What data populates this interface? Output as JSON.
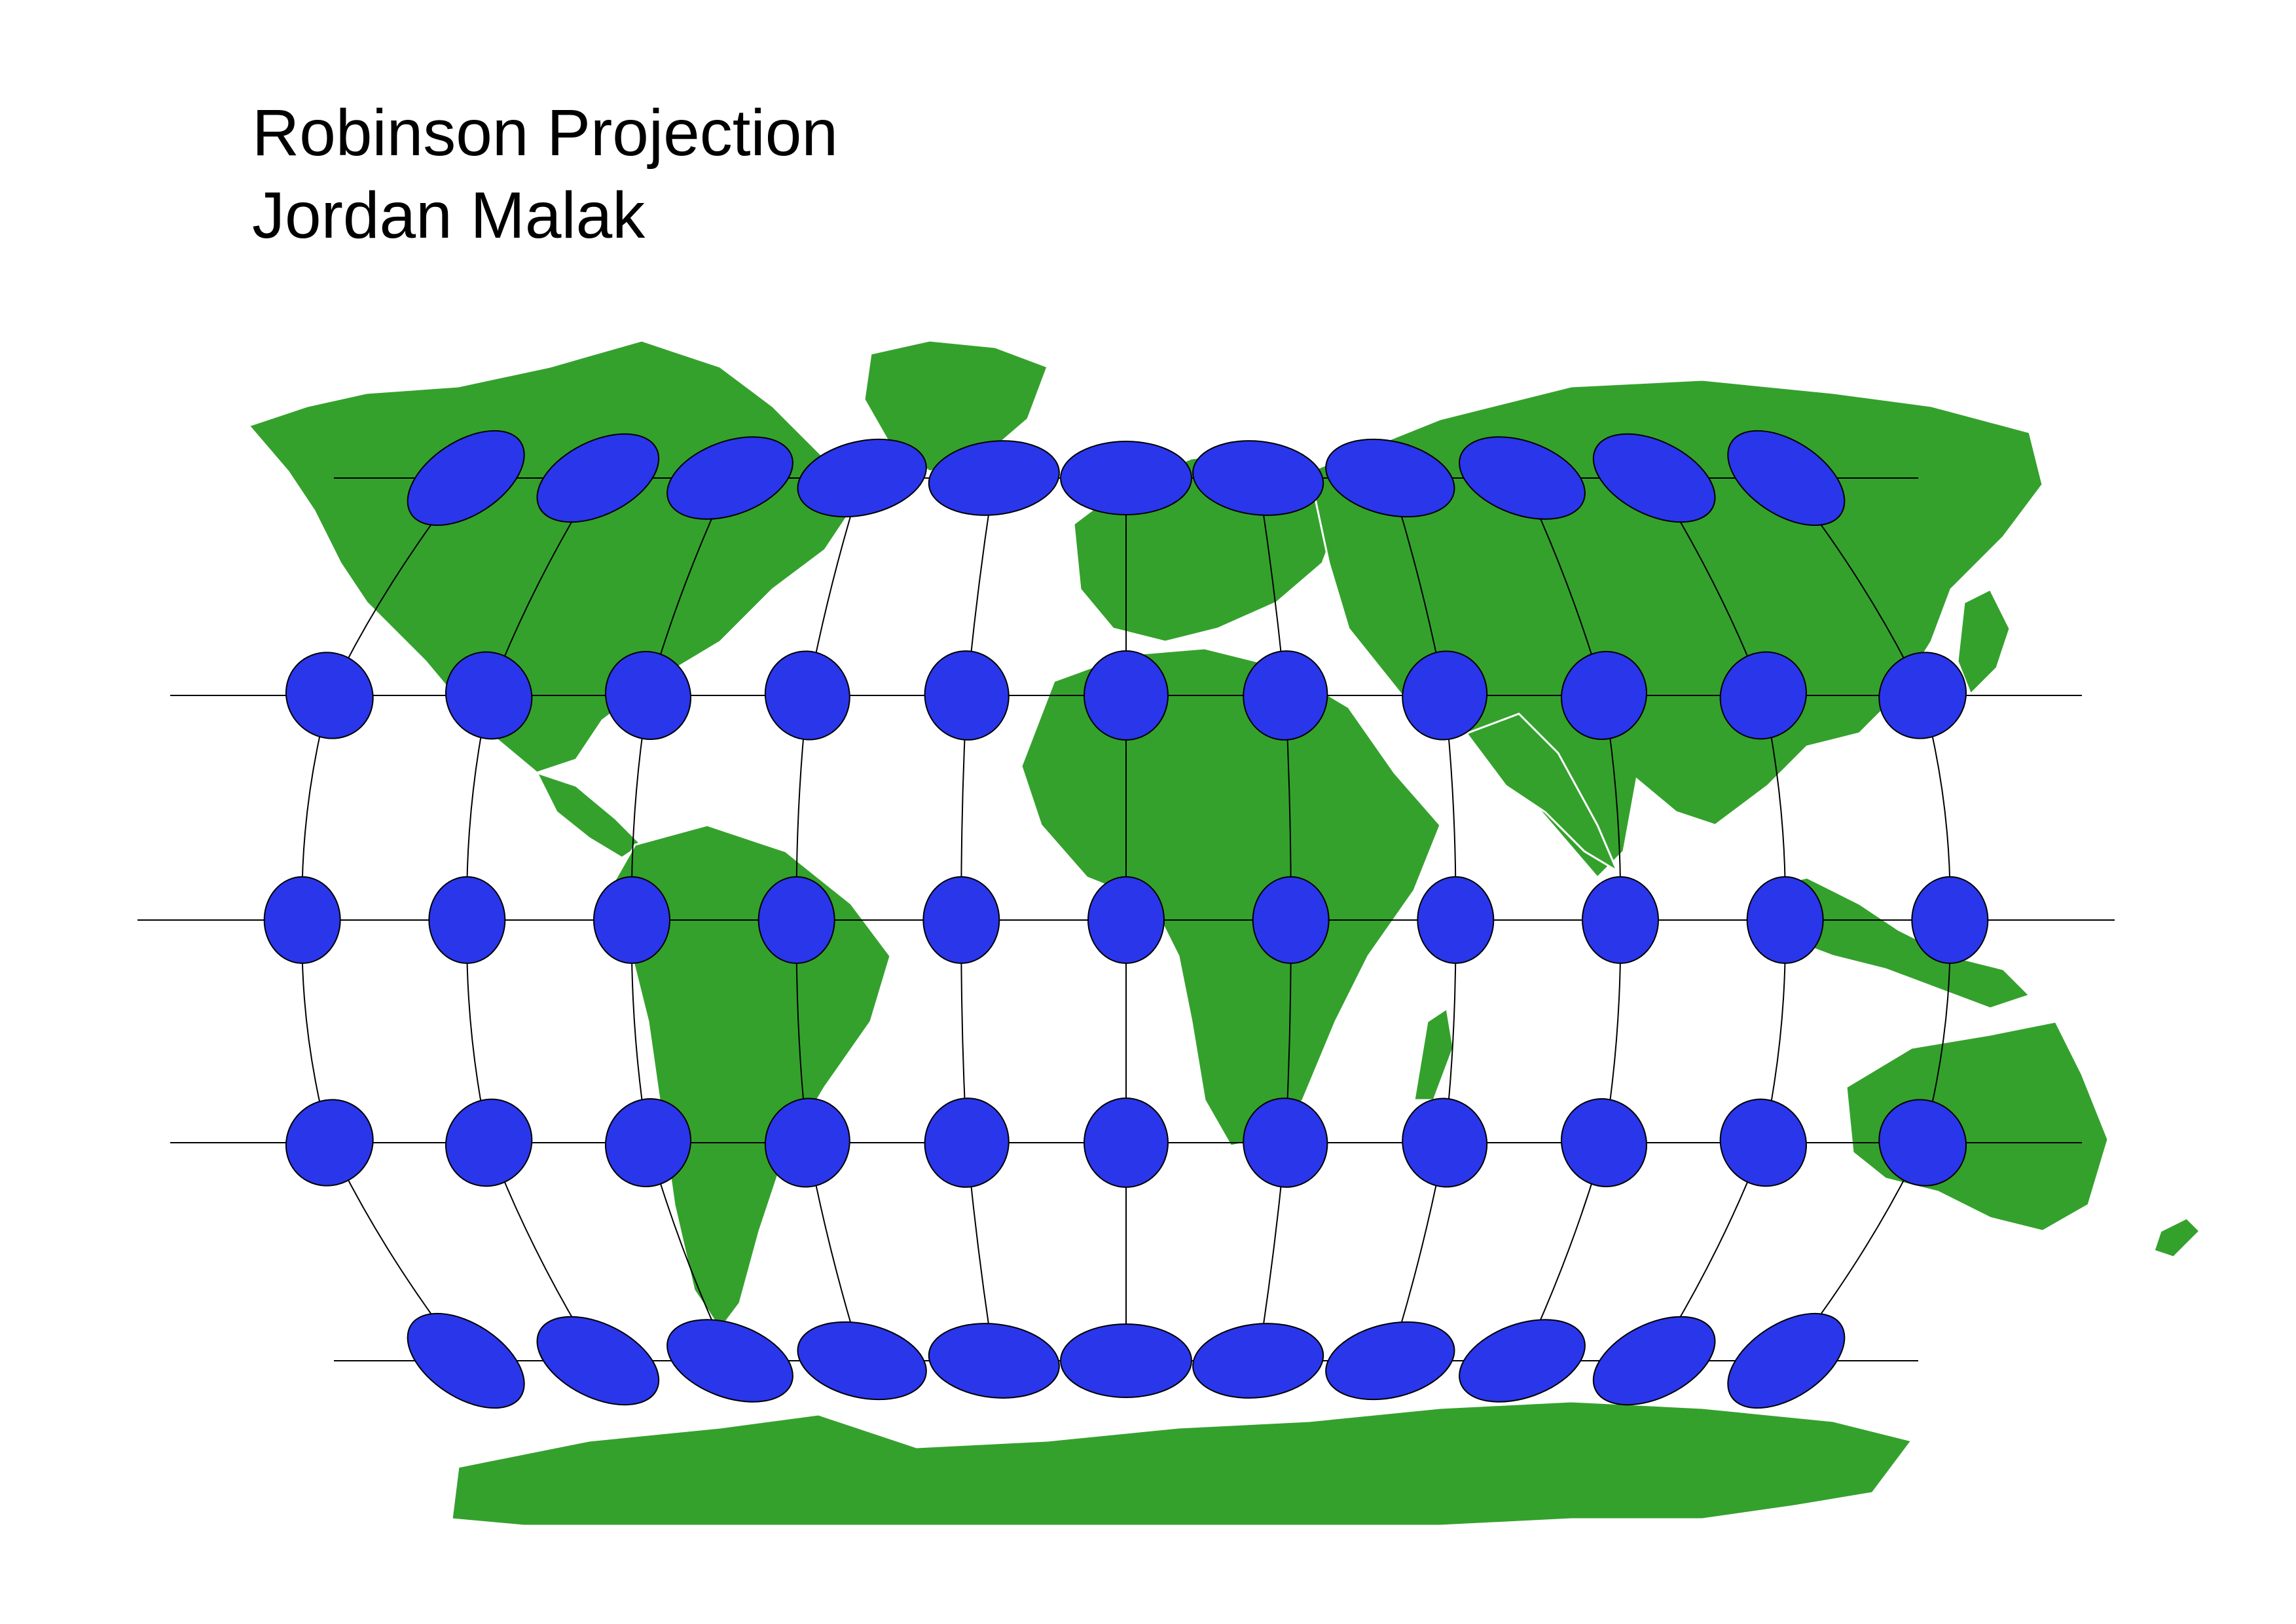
{
  "title": "Robinson Projection",
  "author": "Jordan Malak",
  "colors": {
    "land": "#34a12d",
    "borders": "#ffffff",
    "indicatrix": "#2a36ea",
    "indicatrix_outline": "#000000",
    "graticule": "#000000",
    "background": "#ffffff"
  },
  "graticule": {
    "projection": "Robinson",
    "longitudes_deg": [
      -150,
      -120,
      -90,
      -60,
      -30,
      0,
      30,
      60,
      90,
      120,
      150
    ],
    "latitudes_deg": [
      -60,
      -30,
      0,
      30,
      60
    ]
  },
  "tissot_indicatrices": {
    "rows": [
      {
        "latitude_deg": 60,
        "count": 11
      },
      {
        "latitude_deg": 30,
        "count": 11
      },
      {
        "latitude_deg": 0,
        "count": 11
      },
      {
        "latitude_deg": -30,
        "count": 11
      },
      {
        "latitude_deg": -60,
        "count": 11
      }
    ],
    "note_shape": "ellipses stretched and sheared toward high latitudes and map edges"
  }
}
